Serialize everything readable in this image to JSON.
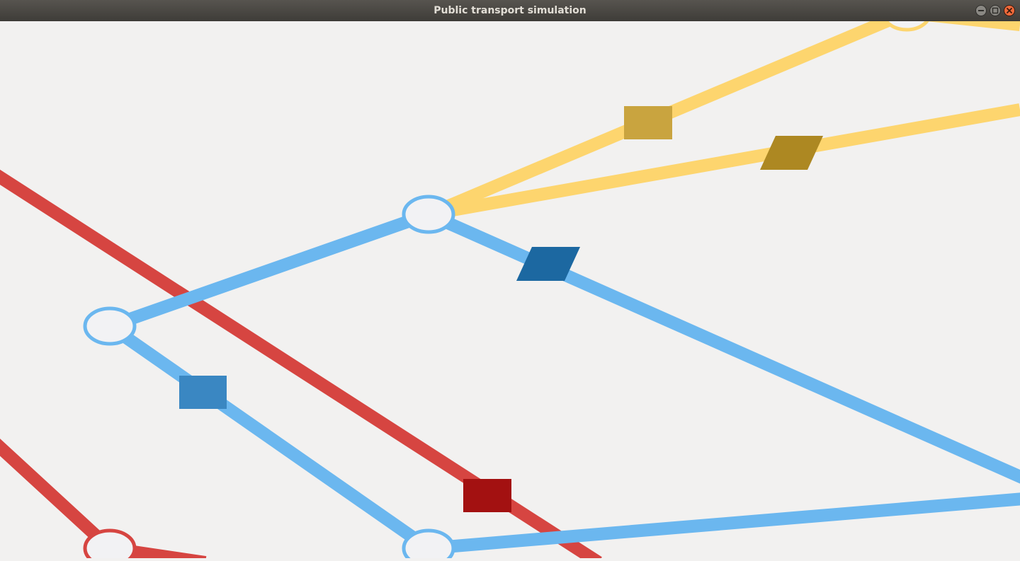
{
  "window": {
    "title": "Public transport simulation",
    "controls": {
      "minimize": "minimize-icon",
      "maximize": "maximize-icon",
      "close": "close-icon"
    }
  },
  "colors": {
    "background": "#f2f1f0",
    "line_red": "#d64541",
    "line_blue": "#6bb7ef",
    "line_yellow": "#fdd56e",
    "vehicle_red": "#a31111",
    "vehicle_blue_light": "#3a87c2",
    "vehicle_blue_dark": "#1c68a1",
    "vehicle_yellow_light": "#c9a43f",
    "vehicle_yellow_dark": "#ad8822",
    "station_fill": "#f2f2f4"
  }
}
